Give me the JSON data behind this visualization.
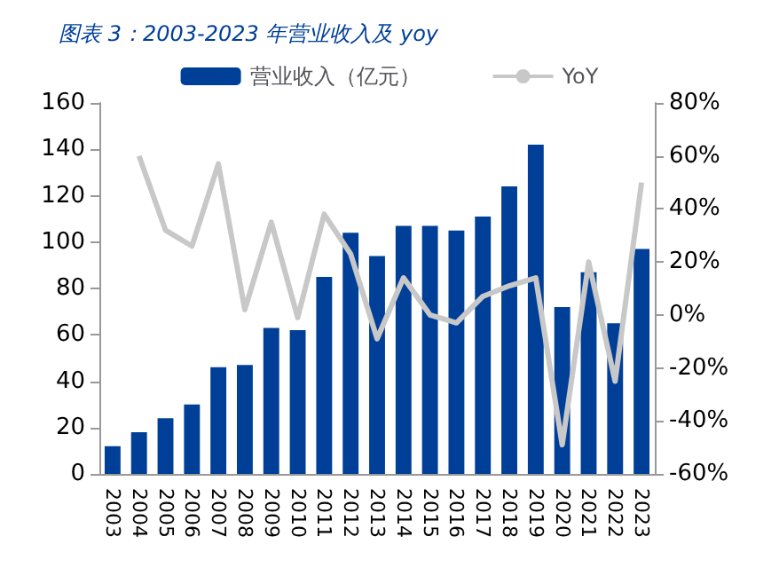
{
  "chart_data": {
    "type": "bar",
    "title": "图表 3：2003-2023 年营业收入及 yoy",
    "categories": [
      "2003",
      "2004",
      "2005",
      "2006",
      "2007",
      "2008",
      "2009",
      "2010",
      "2011",
      "2012",
      "2013",
      "2014",
      "2015",
      "2016",
      "2017",
      "2018",
      "2019",
      "2020",
      "2021",
      "2022",
      "2023"
    ],
    "series": [
      {
        "name": "营业收入（亿元）",
        "color": "#003f98",
        "values": [
          12,
          18,
          24,
          30,
          46,
          47,
          63,
          62,
          85,
          104,
          94,
          107,
          107,
          105,
          111,
          124,
          142,
          72,
          87,
          65,
          97
        ]
      },
      {
        "name": "YoY",
        "type": "line",
        "axis": "y2",
        "color": "#c8c8c8",
        "values": [
          null,
          60,
          32,
          26,
          57,
          2,
          35,
          -1,
          38,
          23,
          -9,
          14,
          0,
          -3,
          7,
          11,
          14,
          -49,
          20,
          -25,
          50
        ]
      }
    ],
    "ylim": [
      0,
      160
    ],
    "yticks": [
      0,
      20,
      40,
      60,
      80,
      100,
      120,
      140,
      160
    ],
    "y2lim": [
      -60,
      80
    ],
    "y2ticks": [
      {
        "value": -60,
        "label": "-60%"
      },
      {
        "value": -40,
        "label": "-40%"
      },
      {
        "value": -20,
        "label": "-20%"
      },
      {
        "value": 0,
        "label": "0%"
      },
      {
        "value": 20,
        "label": "20%"
      },
      {
        "value": 40,
        "label": "40%"
      },
      {
        "value": 60,
        "label": "60%"
      },
      {
        "value": 80,
        "label": "80%"
      }
    ],
    "grid": false,
    "legend": "top",
    "marker": "none"
  }
}
